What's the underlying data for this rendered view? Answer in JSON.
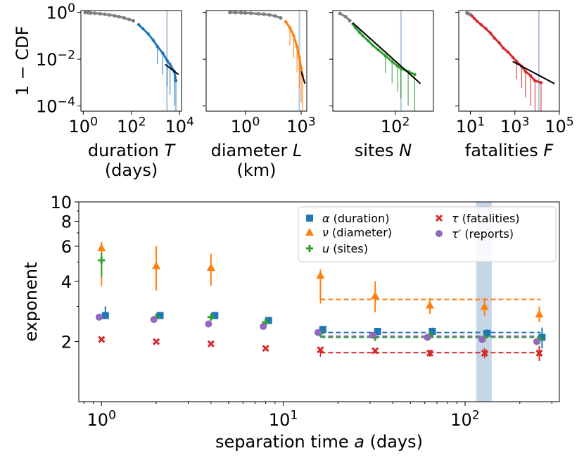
{
  "chart_data": [
    {
      "type": "scatter",
      "panel": "cdf-duration",
      "scale": "log-log",
      "ylabel": "1 − CDF",
      "xlabel_line1": "duration T",
      "xlabel_line2": "(days)",
      "xticks": [
        {
          "label": "10",
          "sup": "0",
          "value": 1
        },
        {
          "label": "10",
          "sup": "2",
          "value": 100
        },
        {
          "label": "10",
          "sup": "4",
          "value": 10000
        }
      ],
      "yticks": [
        {
          "label": "10",
          "sup": "0",
          "value": 1
        },
        {
          "label": "10",
          "sup": "−2",
          "value": 0.01
        },
        {
          "label": "10",
          "sup": "−4",
          "value": 0.0001
        }
      ],
      "xlim": [
        0.8,
        12000
      ],
      "ylim": [
        6e-05,
        1.2
      ],
      "color_head": "#808080",
      "color_tail": "#1f77b4",
      "points": [
        [
          1.2,
          0.99
        ],
        [
          1.6,
          0.97
        ],
        [
          2,
          0.95
        ],
        [
          3,
          0.92
        ],
        [
          5,
          0.88
        ],
        [
          8,
          0.83
        ],
        [
          12,
          0.78
        ],
        [
          20,
          0.72
        ],
        [
          30,
          0.66
        ],
        [
          50,
          0.58
        ],
        [
          80,
          0.5
        ],
        [
          120,
          0.44
        ],
        [
          200,
          0.3
        ],
        [
          300,
          0.2
        ],
        [
          500,
          0.12
        ],
        [
          800,
          0.065
        ],
        [
          1200,
          0.035
        ],
        [
          2000,
          0.018
        ],
        [
          3000,
          0.009
        ],
        [
          4000,
          0.006
        ],
        [
          6000,
          0.003
        ],
        [
          7000,
          0.0012
        ]
      ],
      "tail_start": 200,
      "fit": [
        [
          2500,
          0.006
        ],
        [
          9000,
          0.0022
        ]
      ],
      "vline": 3000
    },
    {
      "type": "scatter",
      "panel": "cdf-diameter",
      "scale": "log-log",
      "xlabel_line1": "diameter L",
      "xlabel_line2": "(km)",
      "xticks": [
        {
          "label": "10",
          "sup": "0",
          "value": 1
        },
        {
          "label": "10",
          "sup": "3",
          "value": 1000
        }
      ],
      "xlim": [
        0.008,
        2000
      ],
      "ylim": [
        6e-05,
        1.2
      ],
      "color_head": "#808080",
      "color_tail": "#ff7f0e",
      "points": [
        [
          0.15,
          0.99
        ],
        [
          0.3,
          0.98
        ],
        [
          0.6,
          0.97
        ],
        [
          1,
          0.95
        ],
        [
          2,
          0.92
        ],
        [
          5,
          0.88
        ],
        [
          10,
          0.84
        ],
        [
          20,
          0.78
        ],
        [
          40,
          0.7
        ],
        [
          80,
          0.58
        ],
        [
          150,
          0.4
        ],
        [
          250,
          0.22
        ],
        [
          400,
          0.1
        ],
        [
          600,
          0.035
        ],
        [
          800,
          0.012
        ],
        [
          1000,
          0.004
        ],
        [
          1200,
          0.002
        ]
      ],
      "tail_start": 150,
      "fit": [
        [
          1000,
          0.003
        ],
        [
          1600,
          0.0009
        ]
      ],
      "vline": 800
    },
    {
      "type": "scatter",
      "panel": "cdf-sites",
      "scale": "log-log",
      "xlabel_line1": "sites N",
      "xticks": [
        {
          "label": "10",
          "sup": "2",
          "value": 100
        }
      ],
      "xlim": [
        1.2,
        1500
      ],
      "ylim": [
        6e-05,
        1.2
      ],
      "color_head": "#808080",
      "color_tail": "#2ca02c",
      "points": [
        [
          2,
          0.9
        ],
        [
          3,
          0.65
        ],
        [
          4,
          0.45
        ],
        [
          5,
          0.32
        ],
        [
          6,
          0.22
        ],
        [
          8,
          0.14
        ],
        [
          10,
          0.1
        ],
        [
          15,
          0.06
        ],
        [
          20,
          0.04
        ],
        [
          30,
          0.025
        ],
        [
          50,
          0.014
        ],
        [
          80,
          0.008
        ],
        [
          120,
          0.005
        ],
        [
          150,
          0.004
        ],
        [
          250,
          0.003
        ],
        [
          400,
          0.0022
        ]
      ],
      "tail_start": 5,
      "fit": [
        [
          5,
          0.35
        ],
        [
          600,
          0.0009
        ]
      ],
      "vline": 150
    },
    {
      "type": "scatter",
      "panel": "cdf-fatalities",
      "scale": "log-log",
      "xlabel_line1": "fatalities F",
      "xticks": [
        {
          "label": "10",
          "sup": "1",
          "value": 10
        },
        {
          "label": "10",
          "sup": "3",
          "value": 1000
        },
        {
          "label": "10",
          "sup": "5",
          "value": 100000
        }
      ],
      "xlim": [
        3,
        100000
      ],
      "ylim": [
        6e-05,
        1.2
      ],
      "color_head": "#808080",
      "color_tail": "#d62728",
      "points": [
        [
          7,
          0.95
        ],
        [
          8,
          0.9
        ],
        [
          10,
          0.8
        ],
        [
          12,
          0.7
        ],
        [
          15,
          0.55
        ],
        [
          20,
          0.42
        ],
        [
          30,
          0.3
        ],
        [
          50,
          0.2
        ],
        [
          80,
          0.13
        ],
        [
          120,
          0.08
        ],
        [
          200,
          0.05
        ],
        [
          300,
          0.03
        ],
        [
          500,
          0.02
        ],
        [
          800,
          0.012
        ],
        [
          1200,
          0.008
        ],
        [
          2000,
          0.005
        ],
        [
          3000,
          0.003
        ],
        [
          5000,
          0.002
        ],
        [
          8000,
          0.0012
        ],
        [
          15000,
          0.001
        ]
      ],
      "tail_start": 12,
      "fit": [
        [
          800,
          0.008
        ],
        [
          60000,
          0.0009
        ]
      ],
      "vline": 12000
    },
    {
      "type": "scatter",
      "panel": "exponents",
      "scale": "log-log",
      "xlabel": "separation time a (days)",
      "xlabel_prefix": "separation time ",
      "xlabel_var": "a",
      "xlabel_suffix": " (days)",
      "ylabel": "exponent",
      "xlim": [
        0.75,
        330
      ],
      "ylim": [
        1.0,
        10.0
      ],
      "xticks": [
        {
          "label": "10",
          "sup": "0",
          "value": 1
        },
        {
          "label": "10",
          "sup": "1",
          "value": 10
        },
        {
          "label": "10",
          "sup": "2",
          "value": 100
        }
      ],
      "yticks": [
        {
          "label": "2",
          "value": 2
        },
        {
          "label": "4",
          "value": 4
        },
        {
          "label": "6",
          "value": 6
        },
        {
          "label": "8",
          "value": 8
        },
        {
          "label": "10",
          "value": 10
        }
      ],
      "legend_position": "top-right",
      "shaded_band": [
        115,
        140
      ],
      "series": [
        {
          "key": "alpha",
          "name": "α (duration)",
          "marker": "square",
          "color": "#1f77b4",
          "points": [
            {
              "x": 1.05,
              "y": 2.7,
              "lo": 2.6,
              "hi": 3.0
            },
            {
              "x": 2.1,
              "y": 2.7,
              "lo": 2.6,
              "hi": 2.8
            },
            {
              "x": 4.2,
              "y": 2.7,
              "lo": 2.65,
              "hi": 2.75
            },
            {
              "x": 8.3,
              "y": 2.55,
              "lo": 2.5,
              "hi": 2.6
            },
            {
              "x": 16.5,
              "y": 2.3,
              "lo": 2.25,
              "hi": 2.35
            },
            {
              "x": 33,
              "y": 2.25,
              "lo": 2.2,
              "hi": 2.3
            },
            {
              "x": 66,
              "y": 2.25,
              "lo": 2.2,
              "hi": 2.35
            },
            {
              "x": 132,
              "y": 2.2,
              "lo": 2.1,
              "hi": 2.3
            },
            {
              "x": 265,
              "y": 2.1,
              "lo": 1.85,
              "hi": 2.35
            }
          ],
          "fit": {
            "x0": 16,
            "x1": 260,
            "y": 2.22
          }
        },
        {
          "key": "nu",
          "name": "ν (diameter)",
          "marker": "triangle",
          "color": "#ff7f0e",
          "points": [
            {
              "x": 1,
              "y": 5.9,
              "lo": 3.8,
              "hi": 6.3
            },
            {
              "x": 2,
              "y": 4.8,
              "lo": 3.6,
              "hi": 6.0
            },
            {
              "x": 4,
              "y": 4.7,
              "lo": 3.8,
              "hi": 5.5
            },
            {
              "x": 16,
              "y": 4.3,
              "lo": 3.2,
              "hi": 4.6
            },
            {
              "x": 32,
              "y": 3.4,
              "lo": 2.8,
              "hi": 4.0
            },
            {
              "x": 64,
              "y": 3.05,
              "lo": 2.75,
              "hi": 3.3
            },
            {
              "x": 128,
              "y": 3.0,
              "lo": 2.7,
              "hi": 3.3
            },
            {
              "x": 256,
              "y": 2.75,
              "lo": 2.5,
              "hi": 3.0
            }
          ],
          "fit": {
            "x0": 16,
            "x1": 260,
            "y": 3.25
          }
        },
        {
          "key": "u",
          "name": "u (sites)",
          "marker": "plus",
          "color": "#2ca02c",
          "points": [
            {
              "x": 1,
              "y": 5.1,
              "lo": 4.2,
              "hi": 5.6
            },
            {
              "x": 2,
              "y": 2.65,
              "lo": 2.55,
              "hi": 2.75
            },
            {
              "x": 4,
              "y": 2.65,
              "lo": 2.55,
              "hi": 2.75
            },
            {
              "x": 8,
              "y": 2.5,
              "lo": 2.45,
              "hi": 2.55
            },
            {
              "x": 16,
              "y": 2.2,
              "lo": 2.15,
              "hi": 2.25
            },
            {
              "x": 32,
              "y": 2.1,
              "lo": 2.05,
              "hi": 2.15
            },
            {
              "x": 64,
              "y": 2.15,
              "lo": 2.05,
              "hi": 2.25
            },
            {
              "x": 128,
              "y": 2.1,
              "lo": 2.0,
              "hi": 2.2
            },
            {
              "x": 256,
              "y": 2.05,
              "lo": 1.95,
              "hi": 2.15
            }
          ],
          "fit": {
            "x0": 16,
            "x1": 260,
            "y": 2.1
          }
        },
        {
          "key": "tau",
          "name": "τ (fatalities)",
          "marker": "x",
          "color": "#d62728",
          "points": [
            {
              "x": 1,
              "y": 2.05
            },
            {
              "x": 2,
              "y": 2.0
            },
            {
              "x": 4,
              "y": 1.95
            },
            {
              "x": 8,
              "y": 1.85
            },
            {
              "x": 16,
              "y": 1.82
            },
            {
              "x": 32,
              "y": 1.8
            },
            {
              "x": 64,
              "y": 1.75,
              "lo": 1.68,
              "hi": 1.82
            },
            {
              "x": 128,
              "y": 1.75,
              "lo": 1.65,
              "hi": 1.85
            },
            {
              "x": 256,
              "y": 1.75,
              "lo": 1.6,
              "hi": 1.9
            }
          ],
          "fit": {
            "x0": 16,
            "x1": 260,
            "y": 1.76
          }
        },
        {
          "key": "tau_prime",
          "name": "τ′ (reports)",
          "marker": "circle",
          "color": "#9467bd",
          "points": [
            {
              "x": 0.97,
              "y": 2.65
            },
            {
              "x": 1.94,
              "y": 2.58
            },
            {
              "x": 3.88,
              "y": 2.45
            },
            {
              "x": 7.76,
              "y": 2.38
            },
            {
              "x": 15.5,
              "y": 2.22
            },
            {
              "x": 31,
              "y": 2.15
            },
            {
              "x": 62,
              "y": 2.1
            },
            {
              "x": 124,
              "y": 2.05
            },
            {
              "x": 248,
              "y": 2.0
            }
          ],
          "fit": {
            "x0": 16,
            "x1": 260,
            "y": 2.13
          }
        }
      ]
    }
  ]
}
